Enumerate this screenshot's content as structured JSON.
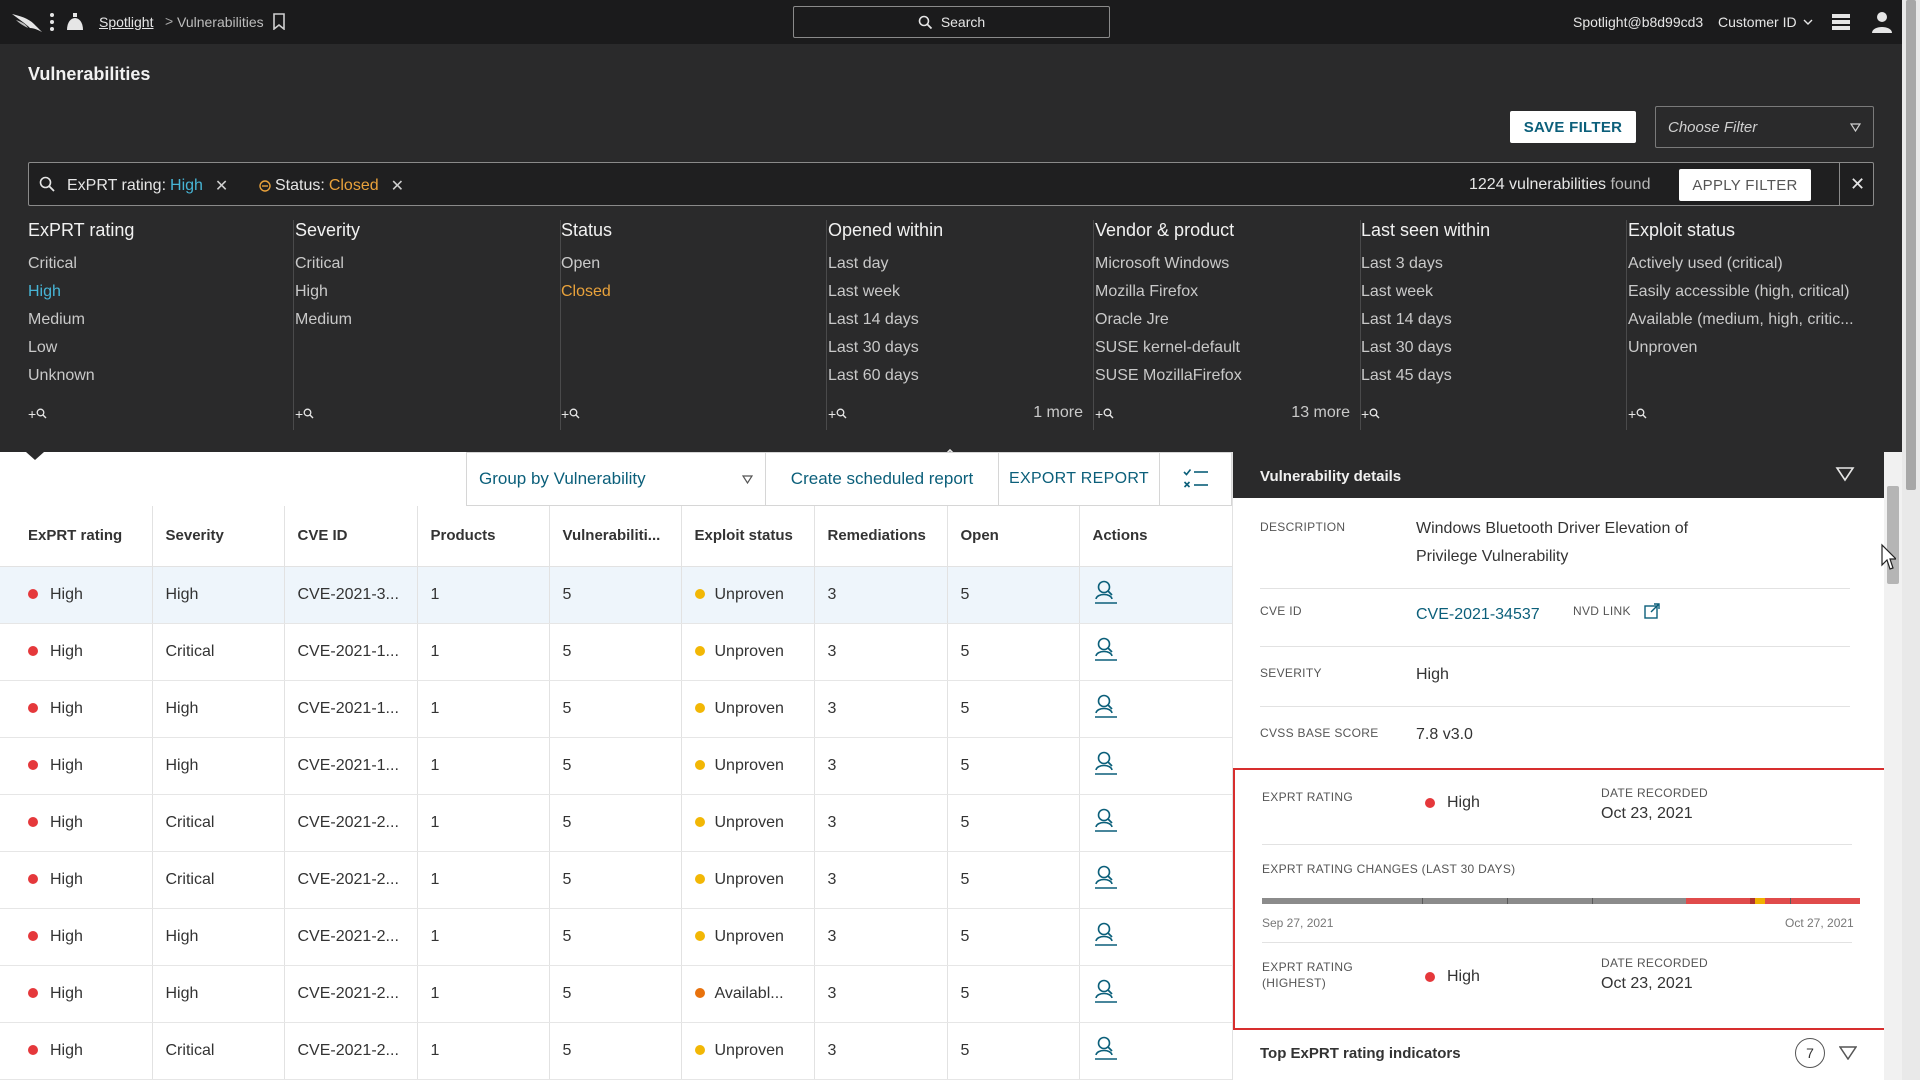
{
  "nav": {
    "breadcrumb_link": "Spotlight",
    "breadcrumb_sep": ">",
    "breadcrumb_current": "Vulnerabilities",
    "search_label": "Search",
    "user": "Spotlight@b8d99cd3",
    "customer_label": "Customer ID"
  },
  "page": {
    "title": "Vulnerabilities"
  },
  "filters": {
    "save_label": "SAVE FILTER",
    "choose_placeholder": "Choose Filter",
    "chips": [
      {
        "key": "ExPRT rating:",
        "value": "High"
      },
      {
        "key": "Status:",
        "value": "Closed"
      }
    ],
    "found_count": "1224 vulnerabilities",
    "found_suffix": "found",
    "apply_label": "APPLY FILTER",
    "facets": [
      {
        "title": "ExPRT rating",
        "options": [
          "Critical",
          "High",
          "Medium",
          "Low",
          "Unknown"
        ],
        "selected": "High",
        "more": ""
      },
      {
        "title": "Severity",
        "options": [
          "Critical",
          "High",
          "Medium"
        ],
        "selected": "",
        "more": ""
      },
      {
        "title": "Status",
        "options": [
          "Open",
          "Closed"
        ],
        "selected": "Closed",
        "more": ""
      },
      {
        "title": "Opened within",
        "options": [
          "Last day",
          "Last week",
          "Last 14 days",
          "Last 30 days",
          "Last 60 days"
        ],
        "selected": "",
        "more": "1 more"
      },
      {
        "title": "Vendor & product",
        "options": [
          "Microsoft Windows",
          "Mozilla Firefox",
          "Oracle Jre",
          "SUSE kernel-default",
          "SUSE MozillaFirefox"
        ],
        "selected": "",
        "more": "13 more"
      },
      {
        "title": "Last seen within",
        "options": [
          "Last 3 days",
          "Last week",
          "Last 14 days",
          "Last 30 days",
          "Last 45 days"
        ],
        "selected": "",
        "more": ""
      },
      {
        "title": "Exploit status",
        "options": [
          "Actively used (critical)",
          "Easily accessible (high, critical)",
          "Available (medium, high, critic...",
          "Unproven"
        ],
        "selected": "",
        "more": ""
      }
    ],
    "add_label": "+"
  },
  "toolbar": {
    "group_by": "Group by Vulnerability",
    "create_report": "Create scheduled report",
    "export_report": "EXPORT REPORT"
  },
  "table": {
    "columns": [
      "ExPRT rating",
      "Severity",
      "CVE ID",
      "Products",
      "Vulnerabiliti...",
      "Exploit status",
      "Remediations",
      "Open",
      "Actions"
    ],
    "rows": [
      {
        "exprt": "High",
        "severity": "High",
        "cve": "CVE-2021-3...",
        "products": "1",
        "vulns": "5",
        "exploit": "Unproven",
        "exploit_color": "#f2b705",
        "remediations": "3",
        "open": "5"
      },
      {
        "exprt": "High",
        "severity": "Critical",
        "cve": "CVE-2021-1...",
        "products": "1",
        "vulns": "5",
        "exploit": "Unproven",
        "exploit_color": "#f2b705",
        "remediations": "3",
        "open": "5"
      },
      {
        "exprt": "High",
        "severity": "High",
        "cve": "CVE-2021-1...",
        "products": "1",
        "vulns": "5",
        "exploit": "Unproven",
        "exploit_color": "#f2b705",
        "remediations": "3",
        "open": "5"
      },
      {
        "exprt": "High",
        "severity": "High",
        "cve": "CVE-2021-1...",
        "products": "1",
        "vulns": "5",
        "exploit": "Unproven",
        "exploit_color": "#f2b705",
        "remediations": "3",
        "open": "5"
      },
      {
        "exprt": "High",
        "severity": "Critical",
        "cve": "CVE-2021-2...",
        "products": "1",
        "vulns": "5",
        "exploit": "Unproven",
        "exploit_color": "#f2b705",
        "remediations": "3",
        "open": "5"
      },
      {
        "exprt": "High",
        "severity": "Critical",
        "cve": "CVE-2021-2...",
        "products": "1",
        "vulns": "5",
        "exploit": "Unproven",
        "exploit_color": "#f2b705",
        "remediations": "3",
        "open": "5"
      },
      {
        "exprt": "High",
        "severity": "High",
        "cve": "CVE-2021-2...",
        "products": "1",
        "vulns": "5",
        "exploit": "Unproven",
        "exploit_color": "#f2b705",
        "remediations": "3",
        "open": "5"
      },
      {
        "exprt": "High",
        "severity": "High",
        "cve": "CVE-2021-2...",
        "products": "1",
        "vulns": "5",
        "exploit": "Availabl...",
        "exploit_color": "#e8720c",
        "remediations": "3",
        "open": "5"
      },
      {
        "exprt": "High",
        "severity": "Critical",
        "cve": "CVE-2021-2...",
        "products": "1",
        "vulns": "5",
        "exploit": "Unproven",
        "exploit_color": "#f2b705",
        "remediations": "3",
        "open": "5"
      }
    ]
  },
  "details": {
    "title": "Vulnerability details",
    "description_label": "DESCRIPTION",
    "description_line1": "Windows Bluetooth Driver Elevation of",
    "description_line2": "Privilege Vulnerability",
    "cve_label": "CVE ID",
    "cve_value": "CVE-2021-34537",
    "nvd_label": "NVD LINK",
    "severity_label": "SEVERITY",
    "severity_value": "High",
    "cvss_label": "CVSS BASE SCORE",
    "cvss_value": "7.8 v3.0",
    "exprt_label": "EXPRT RATING",
    "exprt_value": "High",
    "date_label": "DATE RECORDED",
    "date_value": "Oct 23, 2021",
    "changes_label": "EXPRT RATING CHANGES (LAST 30 DAYS)",
    "timeline_start": "Sep 27, 2021",
    "timeline_end": "Oct 27, 2021",
    "highest_label_1": "EXPRT RATING",
    "highest_label_2": "(HIGHEST)",
    "highest_value": "High",
    "highest_date_label": "DATE RECORDED",
    "highest_date_value": "Oct 23, 2021",
    "indicators_title": "Top ExPRT rating indicators",
    "indicators_count": "7"
  },
  "colors": {
    "accent": "#0b5f7a",
    "selected_blue": "#47b5d6",
    "selected_orange": "#e9a23b",
    "high_red": "#e5383b",
    "highlight_border": "#d72e2e"
  }
}
